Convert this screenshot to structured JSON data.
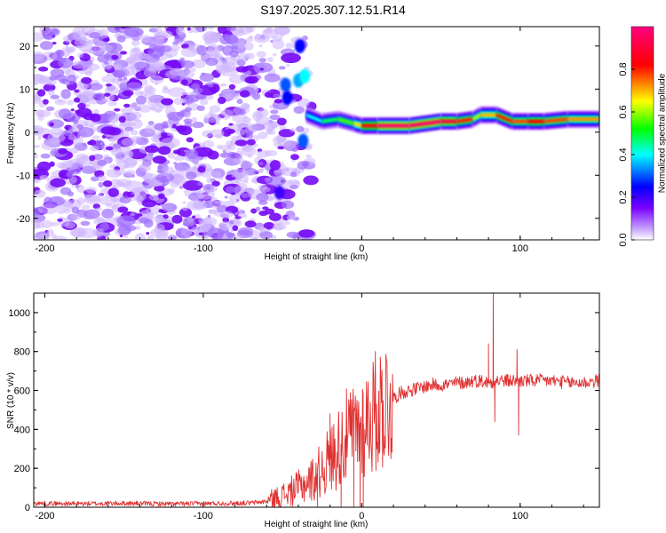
{
  "title": "S197.2025.307.12.51.R14",
  "chart_data": [
    {
      "type": "heatmap",
      "name": "spectrogram",
      "xlabel": "Height of straight line (km)",
      "ylabel": "Frequency (Hz)",
      "xlim": [
        -207,
        150
      ],
      "ylim": [
        -25,
        24.5
      ],
      "xticks": [
        -200,
        -100,
        0,
        100
      ],
      "yticks": [
        -20,
        -10,
        0,
        10,
        20
      ],
      "colorbar": {
        "label": "Normalized spectral amplitude",
        "range": [
          0,
          1
        ],
        "ticks": [
          0.0,
          0.2,
          0.4,
          0.6,
          0.8
        ],
        "colors": [
          "#ffffff",
          "#7a00ff",
          "#0000ff",
          "#00ffff",
          "#00ff00",
          "#ffff00",
          "#ff0000",
          "#ff0080"
        ]
      },
      "noise_region_x": [
        -207,
        -35
      ],
      "ridge": {
        "x": [
          -35,
          -25,
          -15,
          -5,
          0,
          10,
          30,
          50,
          60,
          70,
          75,
          85,
          95,
          105,
          115,
          130,
          150
        ],
        "frequency": [
          4,
          2.5,
          3,
          2,
          1.5,
          1.5,
          1.5,
          2.5,
          2.5,
          3,
          4,
          4,
          2.5,
          2.5,
          2.5,
          3,
          3
        ],
        "amplitude": [
          0.35,
          0.45,
          0.5,
          0.6,
          0.75,
          0.95,
          1.0,
          0.95,
          0.9,
          0.7,
          0.5,
          0.9,
          0.7,
          0.85,
          0.8,
          0.75,
          0.7
        ]
      }
    },
    {
      "type": "line",
      "name": "snr",
      "xlabel": "Height of straight line (km)",
      "ylabel": "SNR (10 * v/v)",
      "xlim": [
        -207,
        150
      ],
      "ylim": [
        0,
        1100
      ],
      "xticks": [
        -200,
        -100,
        0,
        100
      ],
      "yticks": [
        0,
        200,
        400,
        600,
        800,
        1000
      ],
      "color": "#e03030",
      "series": [
        {
          "name": "SNR",
          "x": [
            -207,
            -180,
            -150,
            -120,
            -90,
            -70,
            -60,
            -50,
            -40,
            -30,
            -25,
            -20,
            -15,
            -10,
            -5,
            0,
            5,
            10,
            15,
            20,
            25,
            30,
            35,
            40,
            45,
            50,
            55,
            60,
            65,
            70,
            75,
            80,
            85,
            90,
            95,
            100,
            110,
            120,
            130,
            140,
            150
          ],
          "y": [
            20,
            18,
            20,
            17,
            20,
            22,
            30,
            60,
            100,
            150,
            200,
            250,
            300,
            360,
            380,
            420,
            460,
            500,
            540,
            560,
            590,
            600,
            610,
            620,
            630,
            630,
            630,
            640,
            640,
            650,
            650,
            640,
            650,
            650,
            650,
            650,
            650,
            650,
            640,
            640,
            650
          ]
        }
      ],
      "spikes": [
        {
          "x": -20,
          "y": 480
        },
        {
          "x": -7,
          "y": 460
        },
        {
          "x": 80,
          "y": 840
        },
        {
          "x": 83,
          "y": 1100
        },
        {
          "x": 84,
          "y": 440
        },
        {
          "x": 98,
          "y": 810
        },
        {
          "x": 99,
          "y": 370
        }
      ],
      "dropouts": [
        -28,
        -13,
        -5,
        -1,
        1
      ]
    }
  ]
}
